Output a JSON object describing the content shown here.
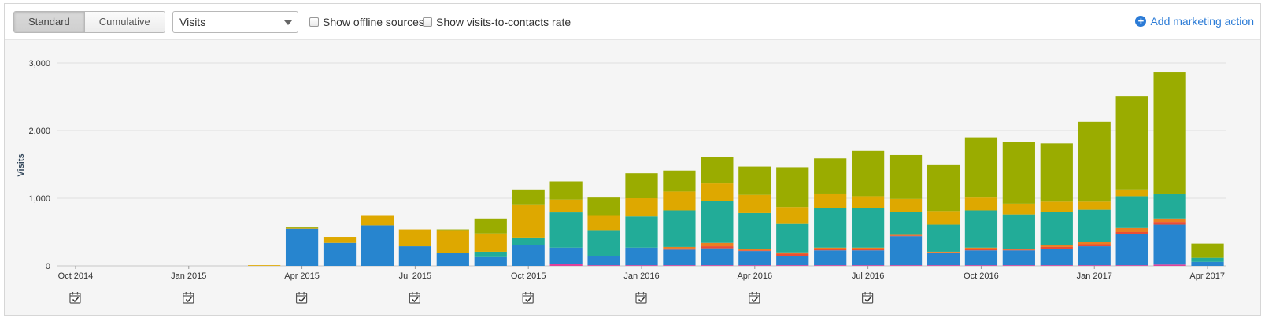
{
  "toolbar": {
    "standard_label": "Standard",
    "cumulative_label": "Cumulative",
    "metric_select": "Visits",
    "offline_label": "Show offline sources",
    "rate_label": "Show visits-to-contacts rate",
    "add_action_label": "Add marketing action"
  },
  "chart_data": {
    "type": "bar",
    "stacked": true,
    "title": "",
    "xlabel": "",
    "ylabel": "Visits",
    "ylim": [
      0,
      3000
    ],
    "yticks": [
      "0",
      "1,000",
      "2,000",
      "3,000"
    ],
    "xticks": [
      "Oct 2014",
      "Jan 2015",
      "Apr 2015",
      "Jul 2015",
      "Oct 2015",
      "Jan 2016",
      "Apr 2016",
      "Jul 2016",
      "Oct 2016",
      "Jan 2017",
      "Apr 2017"
    ],
    "grid": true,
    "legend": "none",
    "categories": [
      "Oct 2014",
      "Nov 2014",
      "Dec 2014",
      "Jan 2015",
      "Feb 2015",
      "Mar 2015",
      "Apr 2015",
      "May 2015",
      "Jun 2015",
      "Jul 2015",
      "Aug 2015",
      "Sep 2015",
      "Oct 2015",
      "Nov 2015",
      "Dec 2015",
      "Jan 2016",
      "Feb 2016",
      "Mar 2016",
      "Apr 2016",
      "May 2016",
      "Jun 2016",
      "Jul 2016",
      "Aug 2016",
      "Sep 2016",
      "Oct 2016",
      "Nov 2016",
      "Dec 2016",
      "Jan 2017",
      "Feb 2017",
      "Mar 2017",
      "Apr 2017"
    ],
    "series": [
      {
        "color": "#e0409a",
        "values": [
          0,
          0,
          0,
          0,
          0,
          0,
          0,
          0,
          0,
          0,
          0,
          0,
          0,
          30,
          10,
          10,
          10,
          10,
          10,
          10,
          10,
          10,
          10,
          10,
          10,
          10,
          10,
          10,
          10,
          20,
          0
        ]
      },
      {
        "color": "#2785cf",
        "values": [
          0,
          0,
          0,
          0,
          0,
          0,
          550,
          340,
          600,
          290,
          190,
          130,
          310,
          240,
          140,
          260,
          230,
          250,
          210,
          140,
          220,
          220,
          430,
          180,
          220,
          220,
          240,
          280,
          460,
          590,
          60
        ]
      },
      {
        "color": "#e94e37",
        "values": [
          0,
          0,
          0,
          0,
          0,
          0,
          0,
          0,
          0,
          0,
          0,
          0,
          0,
          0,
          0,
          0,
          20,
          30,
          10,
          30,
          20,
          20,
          10,
          10,
          20,
          10,
          30,
          30,
          30,
          40,
          0
        ]
      },
      {
        "color": "#ea7f21",
        "values": [
          0,
          0,
          0,
          0,
          0,
          0,
          0,
          0,
          0,
          0,
          0,
          0,
          0,
          0,
          0,
          0,
          20,
          50,
          20,
          20,
          20,
          20,
          10,
          10,
          20,
          10,
          30,
          40,
          60,
          50,
          0
        ]
      },
      {
        "color": "#22ac98",
        "values": [
          0,
          0,
          0,
          0,
          0,
          0,
          0,
          0,
          0,
          0,
          0,
          80,
          110,
          520,
          380,
          460,
          540,
          620,
          530,
          420,
          580,
          590,
          340,
          400,
          550,
          510,
          490,
          470,
          470,
          360,
          60
        ]
      },
      {
        "color": "#dea800",
        "values": [
          0,
          0,
          0,
          0,
          0,
          10,
          10,
          90,
          150,
          250,
          340,
          270,
          490,
          190,
          220,
          270,
          280,
          260,
          270,
          250,
          220,
          170,
          190,
          200,
          190,
          160,
          150,
          120,
          100,
          10,
          0
        ]
      },
      {
        "color": "#9aac00",
        "values": [
          0,
          0,
          0,
          0,
          0,
          0,
          10,
          0,
          0,
          0,
          10,
          220,
          220,
          270,
          260,
          370,
          310,
          390,
          420,
          590,
          520,
          670,
          650,
          680,
          890,
          910,
          860,
          1180,
          1380,
          1790,
          210
        ]
      }
    ]
  },
  "markers": {
    "icon": "calendar-check-icon",
    "dates": [
      "Oct 2014",
      "Jan 2015",
      "Apr 2015",
      "Jul 2015",
      "Oct 2015",
      "Jan 2016",
      "Apr 2016",
      "Jul 2016"
    ]
  }
}
